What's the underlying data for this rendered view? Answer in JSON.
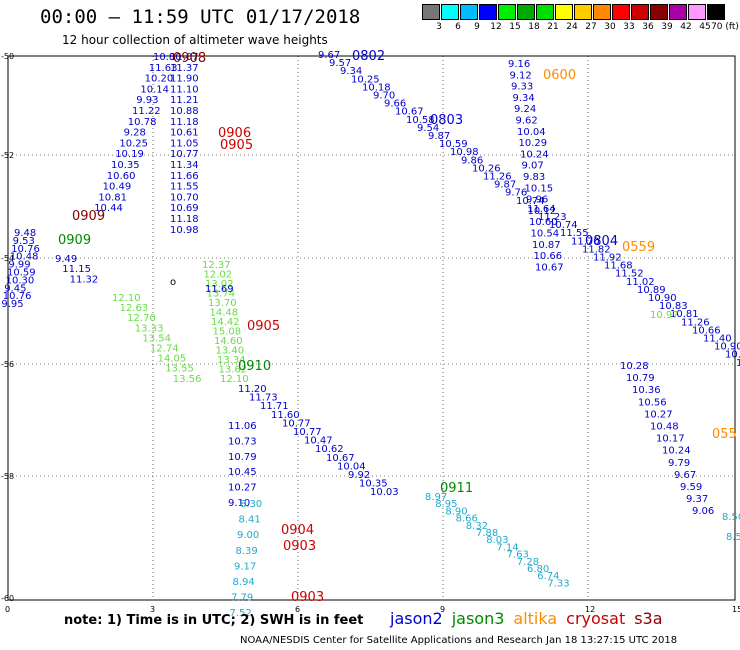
{
  "title": "00:00 — 11:59 UTC 01/17/2018",
  "subtitle": "12 hour collection of altimeter wave heights",
  "scale": {
    "colors": [
      "#777777",
      "#00ffff",
      "#00bbff",
      "#0000ff",
      "#00ee00",
      "#00aa00",
      "#00dd00",
      "#ffff00",
      "#ffcc00",
      "#ff8800",
      "#ff0000",
      "#cc0000",
      "#880000",
      "#aa00aa",
      "#ff99ff",
      "#000000"
    ],
    "labels": [
      "3",
      "6",
      "9",
      "12",
      "15",
      "18",
      "21",
      "24",
      "27",
      "30",
      "33",
      "36",
      "39",
      "42",
      "45",
      "70 (ft)"
    ]
  },
  "axes": {
    "x_ticks": [
      "0",
      "3",
      "6",
      "9",
      "12",
      "15"
    ],
    "y_ticks": [
      "-50",
      "-52",
      "-54",
      "-56",
      "-58",
      "-60"
    ]
  },
  "map_mark": "o",
  "series_colors": {
    "jason2": "#0000cc",
    "jason3": "#008800",
    "altika": "#ff8c00",
    "cryosat": "#cc0000",
    "s3a": "#880000",
    "light_green": "#66dd44",
    "cyan": "#22aacc"
  },
  "tracks": [
    {
      "color": "#0000cc",
      "values": [
        "10.80",
        "11.63",
        "10.20",
        "10.14",
        "9.93",
        "11.22",
        "10.78",
        "9.28",
        "10.25",
        "10.19",
        "10.35",
        "10.60",
        "10.49",
        "10.81",
        "10.44"
      ]
    },
    {
      "color": "#0000cc",
      "values": [
        "9.48",
        "9.53",
        "10.76",
        "10.48",
        "9.99",
        "10.59",
        "10.30",
        "9.45",
        "10.76",
        "9.95"
      ]
    },
    {
      "color": "#0000cc",
      "values": [
        "9.49",
        "11.15",
        "11.32"
      ]
    },
    {
      "color": "#66dd44",
      "values": [
        "12.10",
        "12.63",
        "12.70",
        "13.33",
        "13.54",
        "12.74",
        "14.05",
        "13.55",
        "13.56"
      ]
    },
    {
      "color": "#0000cc",
      "values": [
        "11.07",
        "11.37",
        "11.90",
        "11.10",
        "11.21",
        "10.88",
        "11.18",
        "10.61",
        "11.05",
        "10.77",
        "11.34",
        "11.66",
        "11.55",
        "10.70",
        "10.69",
        "11.18",
        "10.98"
      ]
    },
    {
      "color": "#66dd44",
      "values": [
        "12.37",
        "12.02",
        "13.02",
        "13.74",
        "13.70",
        "14.48",
        "14.42",
        "15.08",
        "14.60",
        "13.40",
        "13.34",
        "13.62",
        "12.10"
      ]
    },
    {
      "color": "#0000cc",
      "values": [
        "11.69"
      ]
    },
    {
      "color": "#0000cc",
      "values": [
        "11.20",
        "11.73",
        "11.71",
        "11.60",
        "10.77",
        "10.77",
        "10.47",
        "10.62",
        "10.67",
        "10.04",
        "9.92",
        "10.35",
        "10.03"
      ]
    },
    {
      "color": "#22aacc",
      "values": [
        "8.97",
        "8.95",
        "8.90",
        "8.66",
        "8.32",
        "7.88",
        "8.03",
        "7.14",
        "7.63",
        "7.28",
        "6.80",
        "6.74",
        "7.33"
      ]
    },
    {
      "color": "#0000cc",
      "values": [
        "11.06",
        "10.73",
        "10.79",
        "10.45",
        "10.27",
        "9.10"
      ]
    },
    {
      "color": "#22aacc",
      "values": [
        "8.30",
        "8.41",
        "9.00",
        "8.39",
        "9.17",
        "8.94",
        "7.79",
        "7.52"
      ]
    },
    {
      "color": "#0000cc",
      "values": [
        "9.67",
        "9.57",
        "9.34",
        "10.25",
        "10.18",
        "9.70",
        "9.66",
        "10.67",
        "10.58",
        "9.54",
        "9.87",
        "10.59",
        "10.98",
        "9.86",
        "10.26",
        "11.26",
        "9.87",
        "9.76",
        "10.74",
        "11.64",
        "11.23",
        "10.74",
        "11.55",
        "11.70",
        "11.82",
        "11.92",
        "11.68",
        "11.52",
        "11.02",
        "10.89",
        "10.90",
        "10.83",
        "10.81",
        "11.26",
        "10.66",
        "11.40",
        "10.90",
        "10.77",
        "10.13",
        "10.55",
        "10.28",
        "10.61"
      ]
    },
    {
      "color": "#66dd44",
      "values": [
        "10.97"
      ]
    },
    {
      "color": "#0000cc",
      "values": [
        "9.16",
        "9.12",
        "9.33",
        "9.34",
        "9.24",
        "9.62",
        "10.04",
        "10.29",
        "10.24",
        "9.07",
        "9.83",
        "10.15",
        "9.96",
        "10.12",
        "10.60",
        "10.54",
        "10.87",
        "10.66",
        "10.67"
      ]
    },
    {
      "color": "#0000cc",
      "values": [
        "10.28",
        "10.79",
        "10.36",
        "10.56",
        "10.27",
        "10.48",
        "10.17",
        "10.24",
        "9.79",
        "9.67",
        "9.59",
        "9.37",
        "9.06"
      ]
    },
    {
      "color": "#22aacc",
      "values": [
        "8.50",
        "8.5"
      ]
    }
  ],
  "time_labels": [
    {
      "text": "0908",
      "color": "#880000"
    },
    {
      "text": "0906",
      "color": "#cc0000"
    },
    {
      "text": "0905",
      "color": "#cc0000"
    },
    {
      "text": "0909",
      "color": "#880000"
    },
    {
      "text": "0909",
      "color": "#008800"
    },
    {
      "text": "0905",
      "color": "#cc0000"
    },
    {
      "text": "0910",
      "color": "#008800"
    },
    {
      "text": "0904",
      "color": "#cc0000"
    },
    {
      "text": "0903",
      "color": "#cc0000"
    },
    {
      "text": "0903",
      "color": "#cc0000"
    },
    {
      "text": "0802",
      "color": "#0000cc"
    },
    {
      "text": "0803",
      "color": "#0000cc"
    },
    {
      "text": "0600",
      "color": "#ff8c00"
    },
    {
      "text": "0804",
      "color": "#0000cc"
    },
    {
      "text": "0559",
      "color": "#ff8c00"
    },
    {
      "text": "0911",
      "color": "#008800"
    },
    {
      "text": "055",
      "color": "#ff8c00"
    }
  ],
  "note": "note:  1) Time is in UTC;  2) SWH is in feet",
  "legend": [
    {
      "text": "jason2",
      "color": "#0000cc"
    },
    {
      "text": "jason3",
      "color": "#008800"
    },
    {
      "text": "altika",
      "color": "#ff8c00"
    },
    {
      "text": "cryosat",
      "color": "#cc0000"
    },
    {
      "text": "s3a",
      "color": "#880000"
    }
  ],
  "credit": "NOAA/NESDIS Center for Satellite Applications and Research    Jan 18 13:27:15 UTC 2018"
}
